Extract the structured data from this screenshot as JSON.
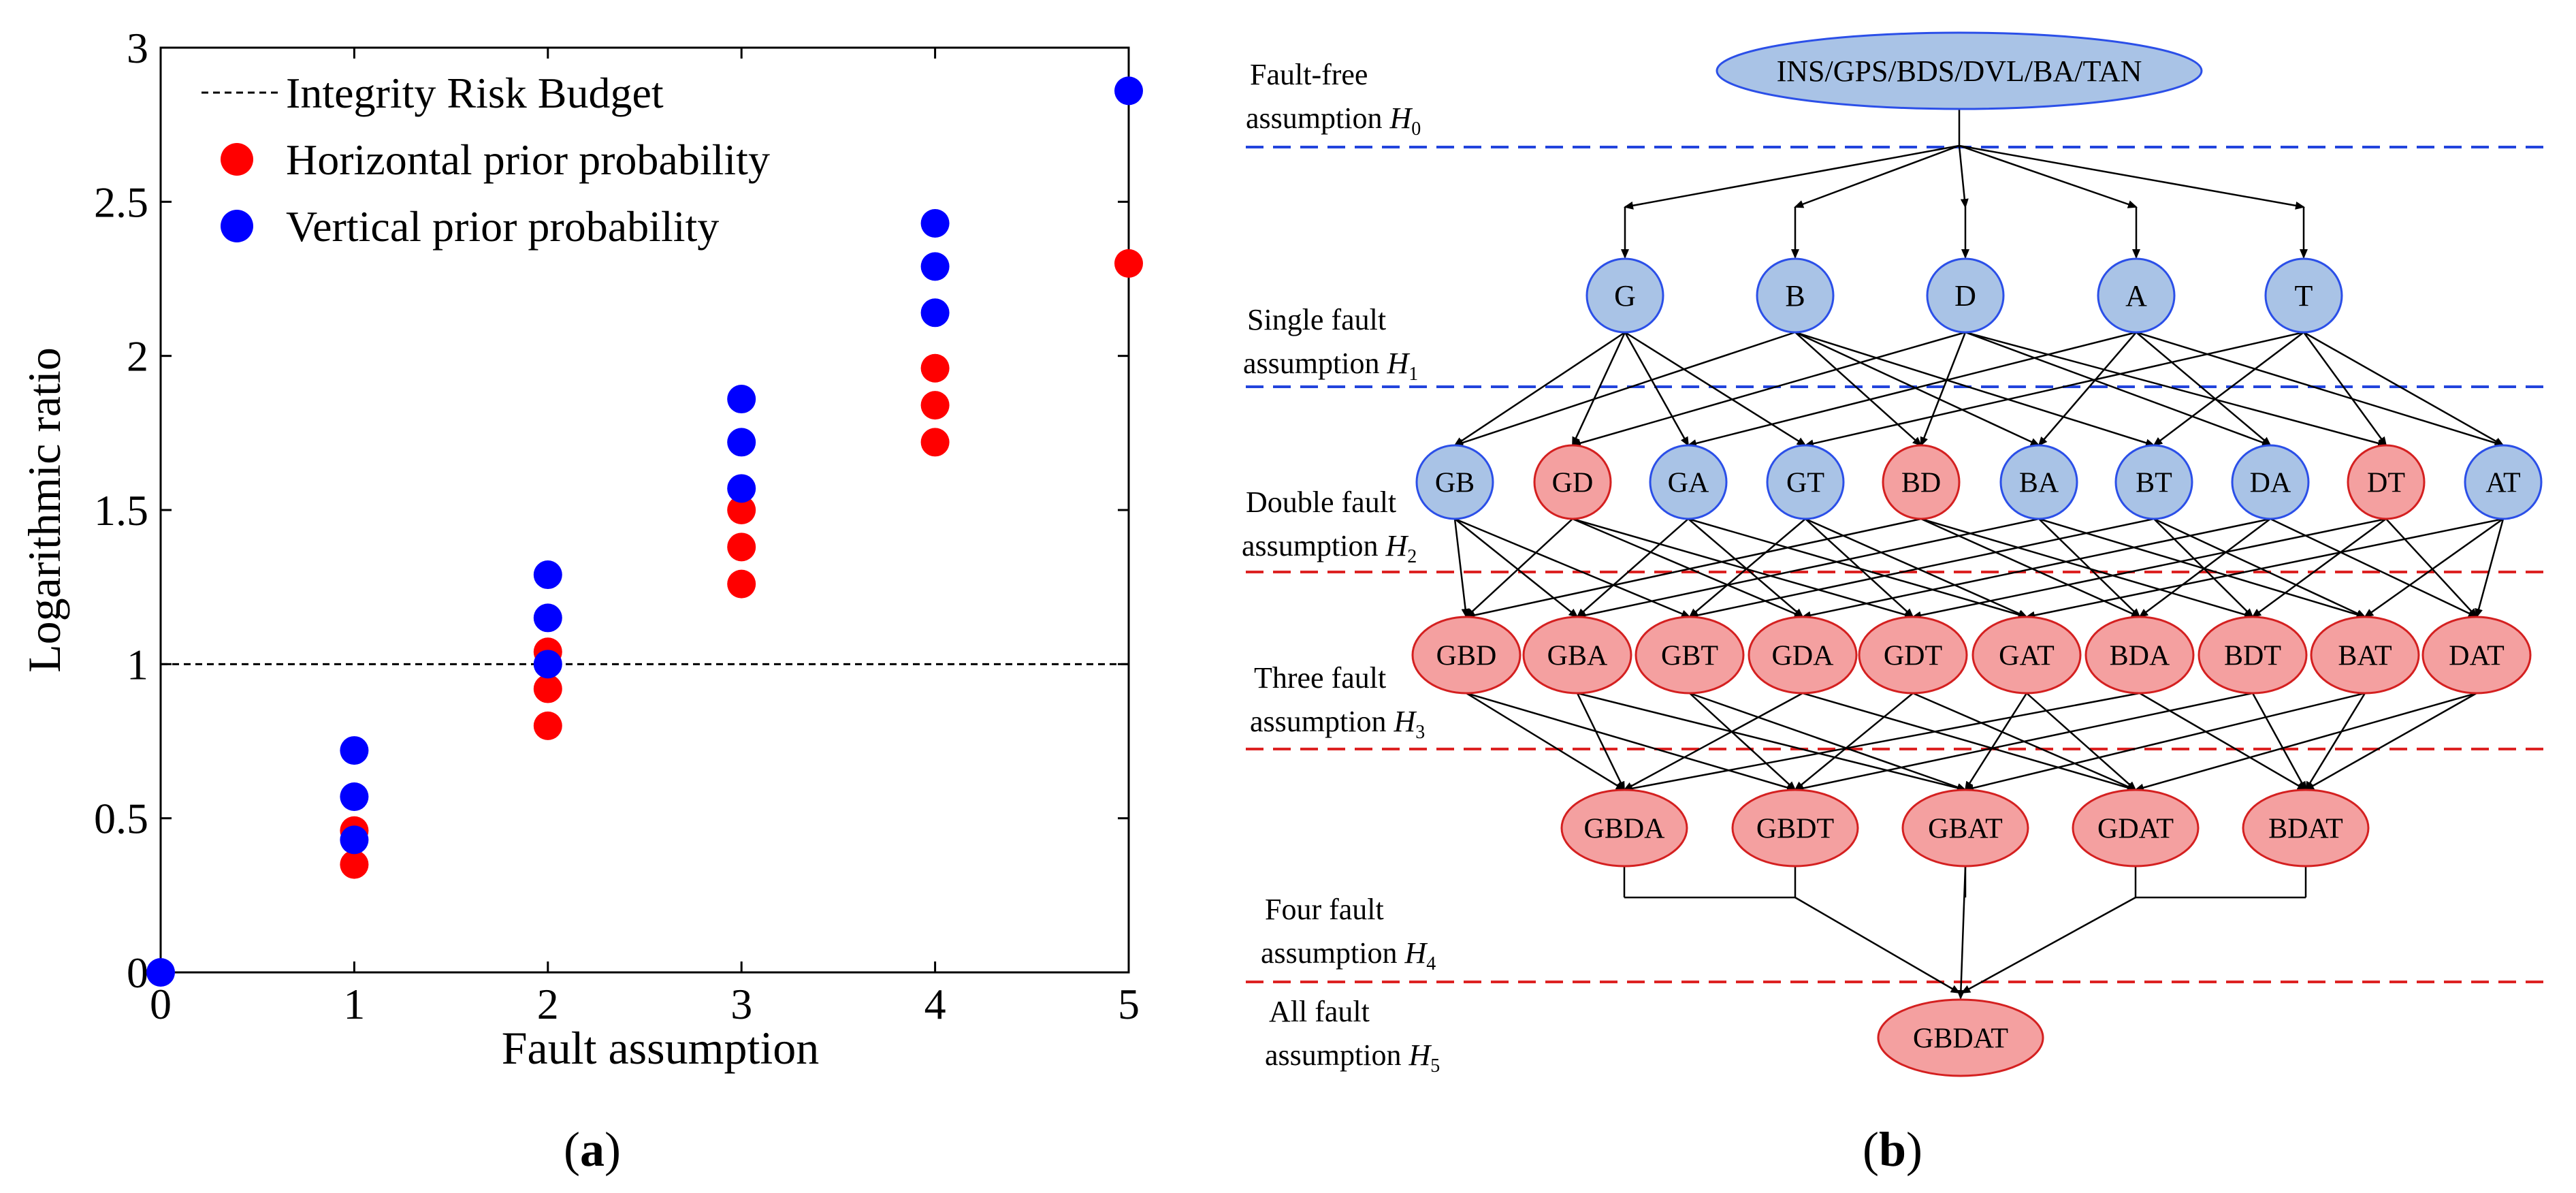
{
  "colors": {
    "red_marker": "#ff0000",
    "blue_marker": "#0000ff",
    "blue_node_fill": "#a9c3e6",
    "blue_node_stroke": "#2b4fe8",
    "red_node_fill": "#f4a0a0",
    "red_node_stroke": "#d42020",
    "blue_dash": "#2244dd",
    "red_dash": "#dd2222"
  },
  "panel_a": {
    "caption_open": "(",
    "caption_letter": "a",
    "caption_close": ")"
  },
  "panel_b": {
    "caption_open": "(",
    "caption_letter": "b",
    "caption_close": ")"
  },
  "chart_data": {
    "type": "scatter",
    "title": "",
    "xlabel": "Fault assumption",
    "ylabel": "Logarithmic ratio",
    "xlim": [
      0,
      5
    ],
    "ylim": [
      0,
      3
    ],
    "x_ticks": [
      "0",
      "1",
      "2",
      "3",
      "4",
      "5"
    ],
    "y_ticks": [
      "0",
      "0.5",
      "1",
      "1.5",
      "2",
      "2.5",
      "3"
    ],
    "grid": false,
    "legend_position": "top-left",
    "reference_line": {
      "name": "Integrity Risk Budget",
      "y": 1,
      "style": "dashed"
    },
    "series": [
      {
        "name": "Horizontal prior probability",
        "color": "red",
        "points": [
          [
            1,
            0.35
          ],
          [
            1,
            0.46
          ],
          [
            2,
            0.8
          ],
          [
            2,
            0.92
          ],
          [
            2,
            1.04
          ],
          [
            3,
            1.26
          ],
          [
            3,
            1.38
          ],
          [
            3,
            1.5
          ],
          [
            4,
            1.72
          ],
          [
            4,
            1.84
          ],
          [
            4,
            1.96
          ],
          [
            5,
            2.3
          ]
        ]
      },
      {
        "name": "Vertical prior probability",
        "color": "blue",
        "points": [
          [
            0,
            0
          ],
          [
            1,
            0.43
          ],
          [
            1,
            0.57
          ],
          [
            1,
            0.72
          ],
          [
            2,
            1.0
          ],
          [
            2,
            1.15
          ],
          [
            2,
            1.29
          ],
          [
            3,
            1.57
          ],
          [
            3,
            1.72
          ],
          [
            3,
            1.86
          ],
          [
            4,
            2.14
          ],
          [
            4,
            2.29
          ],
          [
            4,
            2.43
          ],
          [
            5,
            2.86
          ]
        ]
      }
    ]
  },
  "diagram": {
    "top_node": "INS/GPS/BDS/DVL/BA/TAN",
    "level_labels": [
      {
        "line1": "Fault-free",
        "line2": "assumption",
        "sym": "H",
        "sub": "0"
      },
      {
        "line1": "Single fault",
        "line2": "assumption",
        "sym": "H",
        "sub": "1"
      },
      {
        "line1": "Double fault",
        "line2": "assumption",
        "sym": "H",
        "sub": "2"
      },
      {
        "line1": "Three fault",
        "line2": "assumption",
        "sym": "H",
        "sub": "3"
      },
      {
        "line1": "Four fault",
        "line2": "assumption",
        "sym": "H",
        "sub": "4"
      },
      {
        "line1": "All fault",
        "line2": "assumption",
        "sym": "H",
        "sub": "5"
      }
    ],
    "single_nodes": [
      {
        "label": "G",
        "color": "blue"
      },
      {
        "label": "B",
        "color": "blue"
      },
      {
        "label": "D",
        "color": "blue"
      },
      {
        "label": "A",
        "color": "blue"
      },
      {
        "label": "T",
        "color": "blue"
      }
    ],
    "double_nodes": [
      {
        "label": "GB",
        "color": "blue"
      },
      {
        "label": "GD",
        "color": "red"
      },
      {
        "label": "GA",
        "color": "blue"
      },
      {
        "label": "GT",
        "color": "blue"
      },
      {
        "label": "BD",
        "color": "red"
      },
      {
        "label": "BA",
        "color": "blue"
      },
      {
        "label": "BT",
        "color": "blue"
      },
      {
        "label": "DA",
        "color": "blue"
      },
      {
        "label": "DT",
        "color": "red"
      },
      {
        "label": "AT",
        "color": "blue"
      }
    ],
    "triple_nodes": [
      {
        "label": "GBD",
        "color": "red"
      },
      {
        "label": "GBA",
        "color": "red"
      },
      {
        "label": "GBT",
        "color": "red"
      },
      {
        "label": "GDA",
        "color": "red"
      },
      {
        "label": "GDT",
        "color": "red"
      },
      {
        "label": "GAT",
        "color": "red"
      },
      {
        "label": "BDA",
        "color": "red"
      },
      {
        "label": "BDT",
        "color": "red"
      },
      {
        "label": "BAT",
        "color": "red"
      },
      {
        "label": "DAT",
        "color": "red"
      }
    ],
    "quad_nodes": [
      {
        "label": "GBDA",
        "color": "red"
      },
      {
        "label": "GBDT",
        "color": "red"
      },
      {
        "label": "GBAT",
        "color": "red"
      },
      {
        "label": "GDAT",
        "color": "red"
      },
      {
        "label": "BDAT",
        "color": "red"
      }
    ],
    "all_node": {
      "label": "GBDAT",
      "color": "red"
    }
  }
}
